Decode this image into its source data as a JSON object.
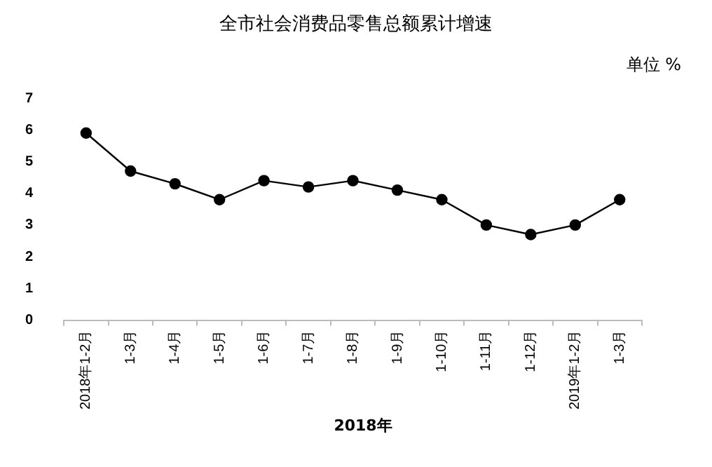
{
  "chart_data": {
    "type": "line",
    "title": "全市社会消费品零售总额累计增速",
    "xlabel": "2018年",
    "annotations": [
      "单位 %"
    ],
    "categories": [
      "2018年1-2月",
      "1-3月",
      "1-4月",
      "1-5月",
      "1-6月",
      "1-7月",
      "1-8月",
      "1-9月",
      "1-10月",
      "1-11月",
      "1-12月",
      "2019年1-2月",
      "1-3月"
    ],
    "series": [
      {
        "color": "#000000",
        "values": [
          5.9,
          4.7,
          4.3,
          3.8,
          4.4,
          4.2,
          4.4,
          4.1,
          3.8,
          3.0,
          2.7,
          3.0,
          3.8
        ]
      }
    ],
    "ylim": [
      0,
      7
    ],
    "yticks": [
      0,
      1,
      2,
      3,
      4,
      5,
      6,
      7
    ],
    "grid": false,
    "legend": false,
    "marker": "circle",
    "line_style": "solid"
  }
}
